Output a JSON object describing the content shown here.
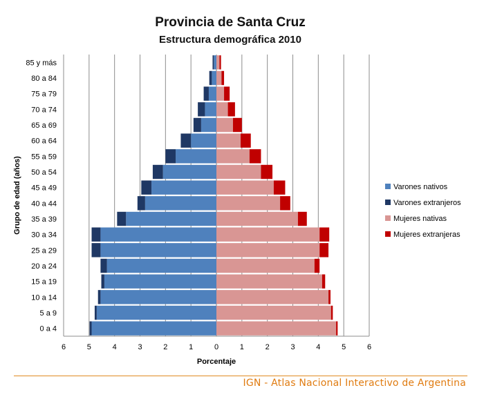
{
  "chart_data": {
    "type": "bar",
    "title": "Provincia de Santa Cruz",
    "subtitle": "Estructura demográfica 2010",
    "xlabel": "Porcentaje",
    "ylabel": "Grupo de edad (años)",
    "xlim": [
      -6,
      6
    ],
    "x_ticks": [
      "6",
      "5",
      "4",
      "3",
      "2",
      "1",
      "0",
      "1",
      "2",
      "3",
      "4",
      "5",
      "6"
    ],
    "grid": true,
    "legend_position": "right",
    "categories": [
      "0 a 4",
      "5 a 9",
      "10 a 14",
      "15 a 19",
      "20 a 24",
      "25 a 29",
      "30 a 34",
      "35 a 39",
      "40 a 44",
      "45 a 49",
      "50 a 54",
      "55 a 59",
      "60 a 64",
      "65 a 69",
      "70 a 74",
      "75 a 79",
      "80 a 84",
      "85 y más"
    ],
    "series": [
      {
        "name": "Varones nativos",
        "color": "#4f81bd",
        "side": "left",
        "values": [
          4.9,
          4.7,
          4.55,
          4.4,
          4.3,
          4.55,
          4.55,
          3.55,
          2.8,
          2.55,
          2.1,
          1.6,
          1.0,
          0.6,
          0.45,
          0.3,
          0.18,
          0.1
        ]
      },
      {
        "name": "Varones extranjeros",
        "color": "#1f3864",
        "side": "left",
        "values": [
          0.08,
          0.08,
          0.1,
          0.12,
          0.25,
          0.35,
          0.35,
          0.35,
          0.3,
          0.4,
          0.4,
          0.4,
          0.4,
          0.3,
          0.28,
          0.2,
          0.1,
          0.05
        ]
      },
      {
        "name": "Mujeres nativas",
        "color": "#d99694",
        "side": "right",
        "values": [
          4.7,
          4.5,
          4.4,
          4.15,
          3.85,
          4.05,
          4.05,
          3.2,
          2.5,
          2.25,
          1.75,
          1.3,
          0.95,
          0.65,
          0.45,
          0.3,
          0.2,
          0.12
        ]
      },
      {
        "name": "Mujeres extranjeras",
        "color": "#c00000",
        "side": "right",
        "values": [
          0.06,
          0.07,
          0.08,
          0.12,
          0.2,
          0.35,
          0.38,
          0.35,
          0.4,
          0.45,
          0.45,
          0.45,
          0.4,
          0.35,
          0.28,
          0.22,
          0.1,
          0.06
        ]
      }
    ]
  },
  "footer": {
    "credit": "IGN - Atlas Nacional Interactivo de Argentina"
  }
}
